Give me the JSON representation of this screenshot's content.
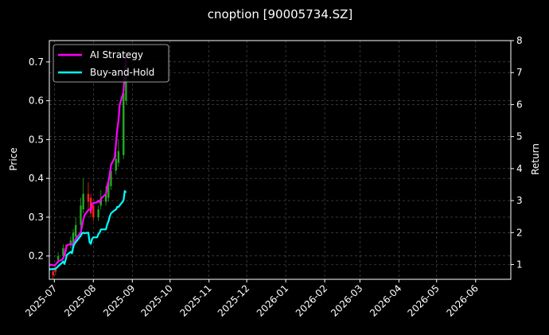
{
  "chart_data": {
    "type": "line",
    "title": "cnoption [90005734.SZ]",
    "xlabel": "",
    "ylabel": "Price",
    "ylabel_right": "Return",
    "x_ticks": [
      "2025-07",
      "2025-08",
      "2025-09",
      "2025-10",
      "2025-11",
      "2025-12",
      "2026-01",
      "2026-02",
      "2026-03",
      "2026-04",
      "2026-05",
      "2026-06"
    ],
    "x_range": [
      "2025-06-27",
      "2026-06-29"
    ],
    "ylim": [
      0.14,
      0.755
    ],
    "yticks": [
      "0.2",
      "0.3",
      "0.4",
      "0.5",
      "0.6",
      "0.7"
    ],
    "ylim_right": [
      0.54,
      8.0
    ],
    "yticks_right": [
      "1",
      "2",
      "3",
      "4",
      "5",
      "6",
      "7",
      "8"
    ],
    "grid": true,
    "legend_position": "top-left",
    "colors": {
      "background": "#000000",
      "ai_strategy": "#ff00ff",
      "buy_and_hold": "#00ffff",
      "candle_up": "#22aa22",
      "candle_down": "#ff2222",
      "grid": "#555555"
    },
    "series": [
      {
        "name": "AI Strategy",
        "axis": "right",
        "x": [
          "2025-06-27",
          "2025-06-30",
          "2025-07-01",
          "2025-07-02",
          "2025-07-03",
          "2025-07-04",
          "2025-07-07",
          "2025-07-08",
          "2025-07-09",
          "2025-07-10",
          "2025-07-11",
          "2025-07-14",
          "2025-07-15",
          "2025-07-16",
          "2025-07-17",
          "2025-07-18",
          "2025-07-21",
          "2025-07-22",
          "2025-07-23",
          "2025-07-24",
          "2025-07-25",
          "2025-07-28",
          "2025-07-29",
          "2025-07-30",
          "2025-07-31",
          "2025-08-01",
          "2025-08-04",
          "2025-08-05",
          "2025-08-06",
          "2025-08-07",
          "2025-08-08",
          "2025-08-11",
          "2025-08-12",
          "2025-08-13",
          "2025-08-14",
          "2025-08-15",
          "2025-08-18",
          "2025-08-19",
          "2025-08-20",
          "2025-08-21",
          "2025-08-22",
          "2025-08-25",
          "2025-08-26",
          "2025-08-27"
        ],
        "values": [
          1.0,
          0.98,
          0.98,
          1.0,
          1.05,
          1.1,
          1.15,
          1.2,
          1.3,
          1.45,
          1.6,
          1.65,
          1.62,
          1.65,
          1.7,
          1.8,
          1.95,
          2.0,
          2.2,
          2.4,
          2.55,
          2.7,
          2.72,
          2.7,
          2.9,
          2.92,
          2.95,
          3.0,
          2.95,
          3.05,
          3.1,
          3.2,
          3.45,
          3.6,
          3.8,
          4.1,
          4.35,
          4.8,
          5.2,
          5.5,
          6.0,
          6.4,
          7.0,
          7.6
        ]
      },
      {
        "name": "Buy-and-Hold",
        "axis": "right",
        "x": [
          "2025-06-27",
          "2025-06-30",
          "2025-07-01",
          "2025-07-02",
          "2025-07-03",
          "2025-07-04",
          "2025-07-07",
          "2025-07-08",
          "2025-07-09",
          "2025-07-10",
          "2025-07-11",
          "2025-07-14",
          "2025-07-15",
          "2025-07-16",
          "2025-07-17",
          "2025-07-18",
          "2025-07-21",
          "2025-07-22",
          "2025-07-23",
          "2025-07-24",
          "2025-07-25",
          "2025-07-28",
          "2025-07-29",
          "2025-07-30",
          "2025-07-31",
          "2025-08-01",
          "2025-08-04",
          "2025-08-05",
          "2025-08-06",
          "2025-08-07",
          "2025-08-08",
          "2025-08-11",
          "2025-08-12",
          "2025-08-13",
          "2025-08-14",
          "2025-08-15",
          "2025-08-18",
          "2025-08-19",
          "2025-08-20",
          "2025-08-21",
          "2025-08-22",
          "2025-08-25",
          "2025-08-26",
          "2025-08-27"
        ],
        "values": [
          0.85,
          0.86,
          0.86,
          0.88,
          0.9,
          0.95,
          1.05,
          1.1,
          1.02,
          1.15,
          1.3,
          1.4,
          1.35,
          1.55,
          1.65,
          1.7,
          1.85,
          1.9,
          1.98,
          2.0,
          1.98,
          2.0,
          1.7,
          1.65,
          1.8,
          1.85,
          1.85,
          1.95,
          2.0,
          2.1,
          2.1,
          2.1,
          2.25,
          2.35,
          2.5,
          2.6,
          2.7,
          2.72,
          2.8,
          2.8,
          2.85,
          3.0,
          3.3,
          3.25
        ]
      }
    ],
    "candles": {
      "axis": "left",
      "x": [
        "2025-06-30",
        "2025-07-02",
        "2025-07-04",
        "2025-07-08",
        "2025-07-10",
        "2025-07-14",
        "2025-07-16",
        "2025-07-18",
        "2025-07-22",
        "2025-07-24",
        "2025-07-28",
        "2025-07-30",
        "2025-08-01",
        "2025-08-05",
        "2025-08-07",
        "2025-08-11",
        "2025-08-13",
        "2025-08-15",
        "2025-08-19",
        "2025-08-21",
        "2025-08-25",
        "2025-08-27"
      ],
      "open": [
        0.16,
        0.17,
        0.19,
        0.2,
        0.22,
        0.23,
        0.22,
        0.25,
        0.28,
        0.32,
        0.36,
        0.35,
        0.33,
        0.3,
        0.33,
        0.34,
        0.35,
        0.38,
        0.42,
        0.44,
        0.46,
        0.6
      ],
      "close": [
        0.15,
        0.16,
        0.2,
        0.22,
        0.21,
        0.24,
        0.26,
        0.28,
        0.33,
        0.36,
        0.34,
        0.31,
        0.3,
        0.32,
        0.35,
        0.36,
        0.39,
        0.42,
        0.45,
        0.47,
        0.62,
        0.7
      ],
      "high": [
        0.17,
        0.18,
        0.21,
        0.23,
        0.23,
        0.25,
        0.27,
        0.3,
        0.35,
        0.4,
        0.39,
        0.36,
        0.34,
        0.33,
        0.37,
        0.38,
        0.4,
        0.44,
        0.48,
        0.5,
        0.65,
        0.72
      ],
      "low": [
        0.14,
        0.15,
        0.18,
        0.19,
        0.2,
        0.22,
        0.21,
        0.24,
        0.27,
        0.31,
        0.32,
        0.3,
        0.29,
        0.29,
        0.32,
        0.33,
        0.34,
        0.37,
        0.41,
        0.43,
        0.45,
        0.59
      ]
    }
  }
}
